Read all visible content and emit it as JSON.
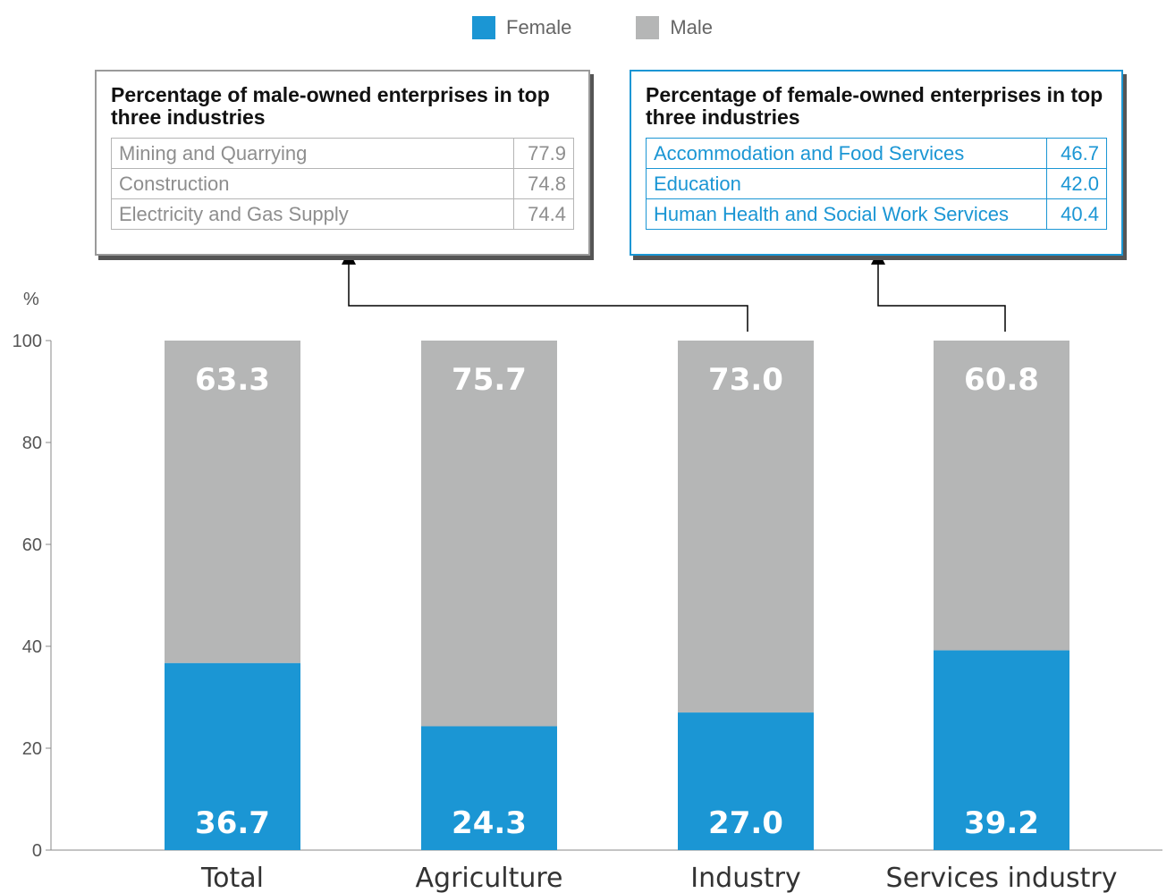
{
  "legend": {
    "female": "Female",
    "male": "Male"
  },
  "colors": {
    "female": "#1b96d4",
    "male": "#b5b6b6"
  },
  "male_box": {
    "title": "Percentage of male-owned enterprises in top three industries",
    "rows": [
      {
        "name": "Mining and Quarrying",
        "value": "77.9"
      },
      {
        "name": "Construction",
        "value": "74.8"
      },
      {
        "name": "Electricity and Gas Supply",
        "value": "74.4"
      }
    ]
  },
  "female_box": {
    "title": "Percentage of female-owned enterprises in top three industries",
    "rows": [
      {
        "name": "Accommodation and Food Services",
        "value": "46.7"
      },
      {
        "name": "Education",
        "value": "42.0"
      },
      {
        "name": "Human Health and Social Work Services",
        "value": "40.4"
      }
    ]
  },
  "chart_data": {
    "type": "bar",
    "stacked": true,
    "ylabel": "%",
    "ylim": [
      0,
      100
    ],
    "yticks": [
      0,
      20,
      40,
      60,
      80,
      100
    ],
    "categories": [
      "Total",
      "Agriculture",
      "Industry",
      "Services industry"
    ],
    "series": [
      {
        "name": "Female",
        "values": [
          36.7,
          24.3,
          27.0,
          39.2
        ]
      },
      {
        "name": "Male",
        "values": [
          63.3,
          75.7,
          73.0,
          60.8
        ]
      }
    ],
    "value_labels": {
      "Female": [
        "36.7",
        "24.3",
        "27.0",
        "39.2"
      ],
      "Male": [
        "63.3",
        "75.7",
        "73.0",
        "60.8"
      ]
    },
    "legend_position": "top-center"
  }
}
